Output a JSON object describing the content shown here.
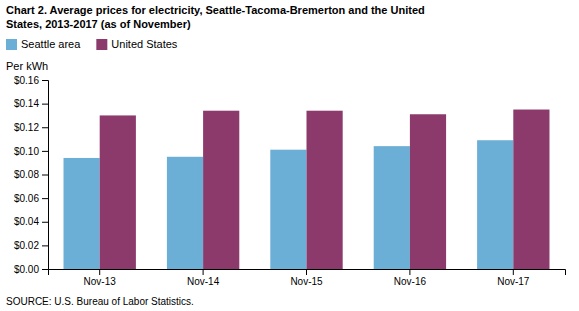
{
  "chart_data": {
    "type": "bar",
    "title": [
      "Chart 2. Average prices for electricity, Seattle-Tacoma-Bremerton and the United",
      "States, 2013-2017  (as of November)"
    ],
    "ylabel": "Per kWh",
    "source": "SOURCE: U.S. Bureau of Labor Statistics.",
    "categories": [
      "Nov-13",
      "Nov-14",
      "Nov-15",
      "Nov-16",
      "Nov-17"
    ],
    "series": [
      {
        "name": "Seattle area",
        "color": "#6baed6",
        "values": [
          0.094,
          0.095,
          0.101,
          0.104,
          0.109
        ]
      },
      {
        "name": "United States",
        "color": "#8B3A6B",
        "values": [
          0.13,
          0.134,
          0.134,
          0.131,
          0.135
        ]
      }
    ],
    "ylim": [
      0,
      0.16
    ],
    "yticks": [
      {
        "value": 0.0,
        "label": "$0.00"
      },
      {
        "value": 0.02,
        "label": "$0.02"
      },
      {
        "value": 0.04,
        "label": "$0.04"
      },
      {
        "value": 0.06,
        "label": "$0.06"
      },
      {
        "value": 0.08,
        "label": "$0.08"
      },
      {
        "value": 0.1,
        "label": "$0.10"
      },
      {
        "value": 0.12,
        "label": "$0.12"
      },
      {
        "value": 0.14,
        "label": "$0.14"
      },
      {
        "value": 0.16,
        "label": "$0.16"
      }
    ],
    "grid": false,
    "legend": "upper left"
  }
}
